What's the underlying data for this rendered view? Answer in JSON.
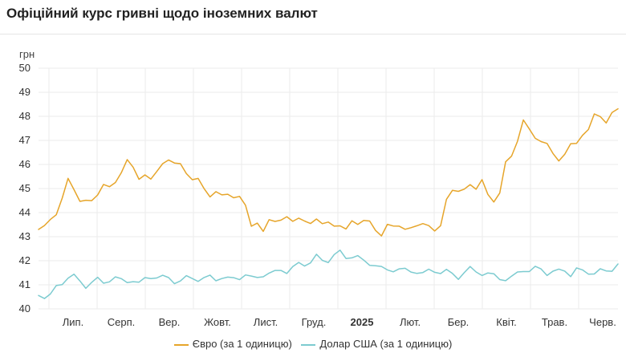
{
  "title": "Офіційний курс гривні щодо іноземних валют",
  "chart_data": {
    "type": "line",
    "ylabel": "грн",
    "ylim": [
      40,
      50
    ],
    "yticks": [
      40,
      41,
      42,
      43,
      44,
      45,
      46,
      47,
      48,
      49,
      50
    ],
    "x_labels": [
      "Лип.",
      "Серп.",
      "Вер.",
      "Жовт.",
      "Лист.",
      "Груд.",
      "2025",
      "Лют.",
      "Бер.",
      "Квіт.",
      "Трав.",
      "Черв."
    ],
    "x_label_bold": "2025",
    "grid": true,
    "legend_position": "bottom",
    "series": [
      {
        "name": "Євро (за 1 одиницю)",
        "color": "#e6a52a",
        "values": [
          43.3,
          43.4,
          43.7,
          44.0,
          44.6,
          45.3,
          45.0,
          44.6,
          44.4,
          44.4,
          44.9,
          45.2,
          44.9,
          45.3,
          45.8,
          46.1,
          45.8,
          45.5,
          45.6,
          45.3,
          45.7,
          46.1,
          46.2,
          46.0,
          46.0,
          45.7,
          45.4,
          45.3,
          45.0,
          44.8,
          44.8,
          44.6,
          44.9,
          44.7,
          44.5,
          44.3,
          43.6,
          43.5,
          43.1,
          43.8,
          43.7,
          43.6,
          43.8,
          43.7,
          43.8,
          43.6,
          43.5,
          43.8,
          43.6,
          43.5,
          43.4,
          43.6,
          43.3,
          43.5,
          43.6,
          43.8,
          43.5,
          43.2,
          43.2,
          43.5,
          43.3,
          43.5,
          43.4,
          43.3,
          43.4,
          43.6,
          43.5,
          43.2,
          43.4,
          44.6,
          45.0,
          44.8,
          44.9,
          45.3,
          45.0,
          45.2,
          44.8,
          44.6,
          44.7,
          46.0,
          46.5,
          47.0,
          47.7,
          47.5,
          47.2,
          46.9,
          46.8,
          46.5,
          46.2,
          46.4,
          46.8,
          46.9,
          47.3,
          47.4,
          48.0,
          48.1,
          47.8,
          48.0,
          48.3
        ]
      },
      {
        "name": "Долар США (за 1 одиницю)",
        "color": "#7ccbd0",
        "values": [
          40.5,
          40.6,
          40.6,
          40.8,
          41.1,
          41.4,
          41.3,
          41.1,
          41.0,
          41.1,
          41.2,
          41.1,
          41.2,
          41.3,
          41.2,
          41.1,
          41.2,
          41.1,
          41.2,
          41.3,
          41.4,
          41.3,
          41.2,
          41.2,
          41.2,
          41.2,
          41.3,
          41.3,
          41.2,
          41.3,
          41.3,
          41.3,
          41.2,
          41.3,
          41.3,
          41.4,
          41.3,
          41.3,
          41.4,
          41.5,
          41.5,
          41.6,
          41.6,
          41.7,
          41.8,
          41.9,
          42.0,
          42.1,
          42.0,
          42.1,
          42.2,
          42.3,
          42.2,
          42.2,
          42.1,
          42.0,
          41.9,
          41.8,
          41.7,
          41.6,
          41.6,
          41.7,
          41.6,
          41.5,
          41.6,
          41.5,
          41.5,
          41.6,
          41.6,
          41.5,
          41.4,
          41.4,
          41.5,
          41.6,
          41.6,
          41.5,
          41.4,
          41.4,
          41.3,
          41.2,
          41.3,
          41.5,
          41.6,
          41.6,
          41.7,
          41.6,
          41.5,
          41.6,
          41.5,
          41.6,
          41.5,
          41.6,
          41.5,
          41.6,
          41.5,
          41.5,
          41.6,
          41.7,
          41.8
        ]
      }
    ]
  }
}
